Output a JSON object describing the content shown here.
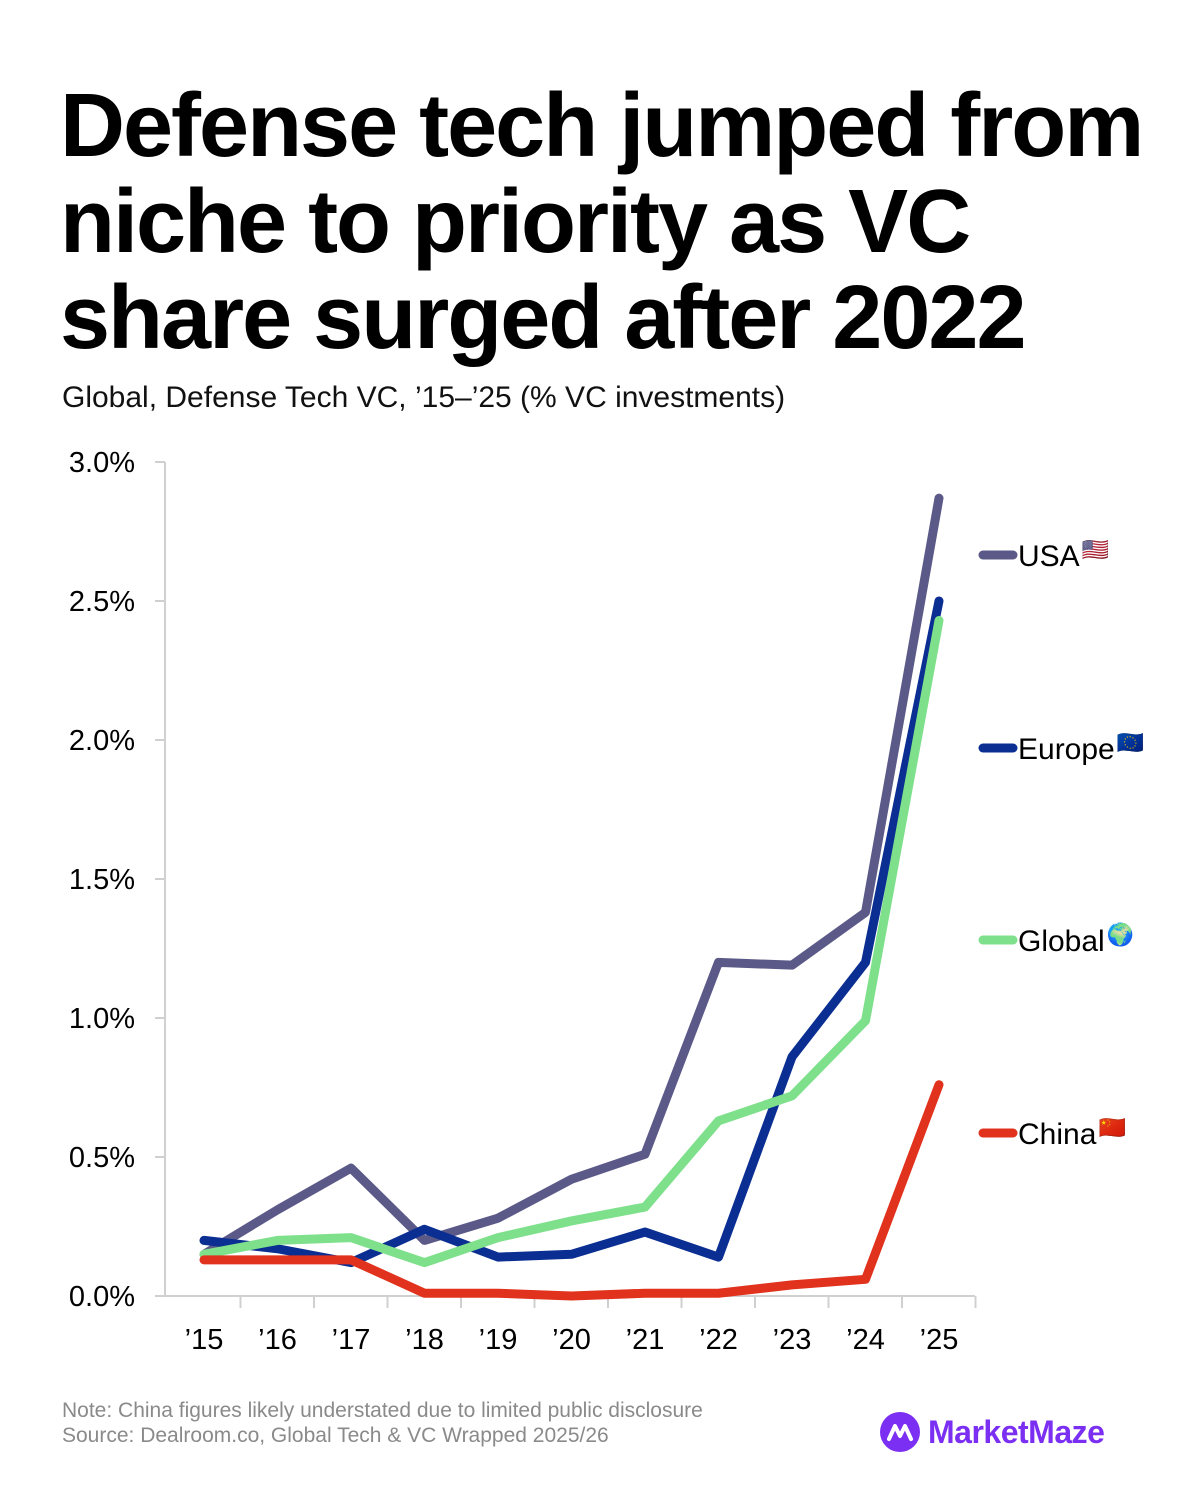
{
  "title": "Defense tech jumped from niche to priority as VC share surged after 2022",
  "subtitle": "Global, Defense Tech VC, ’15–’25 (% VC investments)",
  "footer": {
    "note": "Note: China figures likely understated due to limited public disclosure",
    "source": "Source: Dealroom.co, Global Tech & VC Wrapped 2025/26"
  },
  "brand": {
    "name": "MarketMaze",
    "color": "#7b2ff2",
    "icon": "market-maze-logo-icon"
  },
  "chart_data": {
    "type": "line",
    "title": "",
    "xlabel": "",
    "ylabel": "",
    "ylim": [
      0,
      3.0
    ],
    "grid": false,
    "legend_position": "right",
    "categories": [
      "’15",
      "’16",
      "’17",
      "’18",
      "’19",
      "’20",
      "’21",
      "’22",
      "’23",
      "’24",
      "’25"
    ],
    "y_ticks": [
      {
        "value": 0.0,
        "label": "0.0%"
      },
      {
        "value": 0.5,
        "label": "0.5%"
      },
      {
        "value": 1.0,
        "label": "1.0%"
      },
      {
        "value": 1.5,
        "label": "1.5%"
      },
      {
        "value": 2.0,
        "label": "2.0%"
      },
      {
        "value": 2.5,
        "label": "2.5%"
      },
      {
        "value": 3.0,
        "label": "3.0%"
      }
    ],
    "series": [
      {
        "name": "USA",
        "flag": "🇺🇸",
        "color": "#5b5987",
        "values": [
          0.15,
          0.31,
          0.46,
          0.2,
          0.28,
          0.42,
          0.51,
          1.2,
          1.19,
          1.38,
          2.87
        ]
      },
      {
        "name": "Europe",
        "flag": "🇪🇺",
        "color": "#0a2e91",
        "values": [
          0.2,
          0.17,
          0.12,
          0.24,
          0.14,
          0.15,
          0.23,
          0.14,
          0.86,
          1.2,
          2.5
        ]
      },
      {
        "name": "Global",
        "flag": "🌍",
        "color": "#7fe08c",
        "values": [
          0.15,
          0.2,
          0.21,
          0.12,
          0.21,
          0.27,
          0.32,
          0.63,
          0.72,
          0.99,
          2.43
        ]
      },
      {
        "name": "China",
        "flag": "🇨🇳",
        "color": "#e0321c",
        "values": [
          0.13,
          0.13,
          0.13,
          0.01,
          0.01,
          0.0,
          0.01,
          0.01,
          0.04,
          0.06,
          0.76
        ]
      }
    ]
  }
}
